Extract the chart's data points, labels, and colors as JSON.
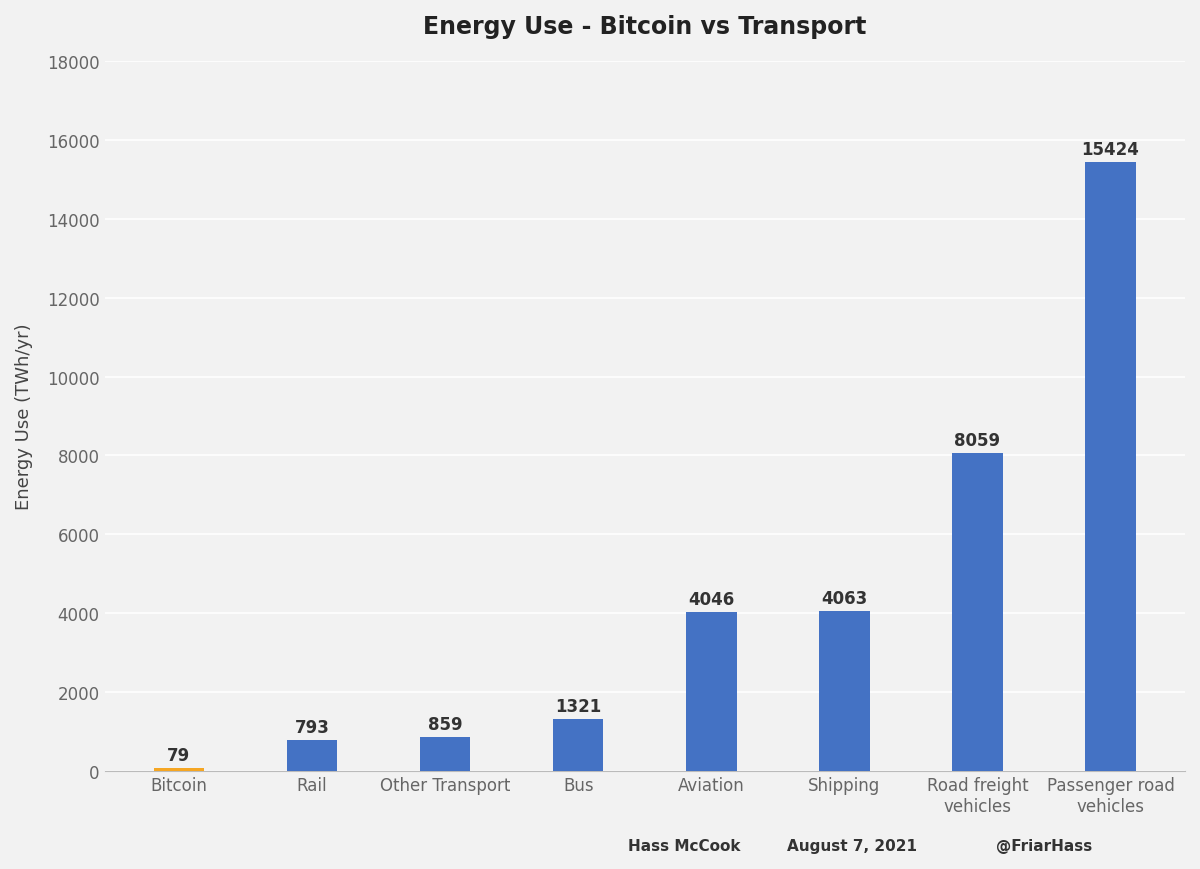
{
  "title": "Energy Use - Bitcoin vs Transport",
  "categories": [
    "Bitcoin",
    "Rail",
    "Other Transport",
    "Bus",
    "Aviation",
    "Shipping",
    "Road freight\nvehicles",
    "Passenger road\nvehicles"
  ],
  "values": [
    79,
    793,
    859,
    1321,
    4046,
    4063,
    8059,
    15424
  ],
  "bar_colors": [
    "#f5a623",
    "#4472c4",
    "#4472c4",
    "#4472c4",
    "#4472c4",
    "#4472c4",
    "#4472c4",
    "#4472c4"
  ],
  "ylabel": "Energy Use (TWh/yr)",
  "ylim": [
    0,
    18000
  ],
  "yticks": [
    0,
    2000,
    4000,
    6000,
    8000,
    10000,
    12000,
    14000,
    16000,
    18000
  ],
  "background_color": "#f2f2f2",
  "plot_bg_color": "#f2f2f2",
  "grid_color": "#ffffff",
  "title_fontsize": 17,
  "label_fontsize": 13,
  "tick_fontsize": 12,
  "annotation_fontsize": 12,
  "bar_width": 0.38,
  "footer_left": "Hass McCook",
  "footer_center": "August 7, 2021",
  "footer_right": "@FriarHass"
}
